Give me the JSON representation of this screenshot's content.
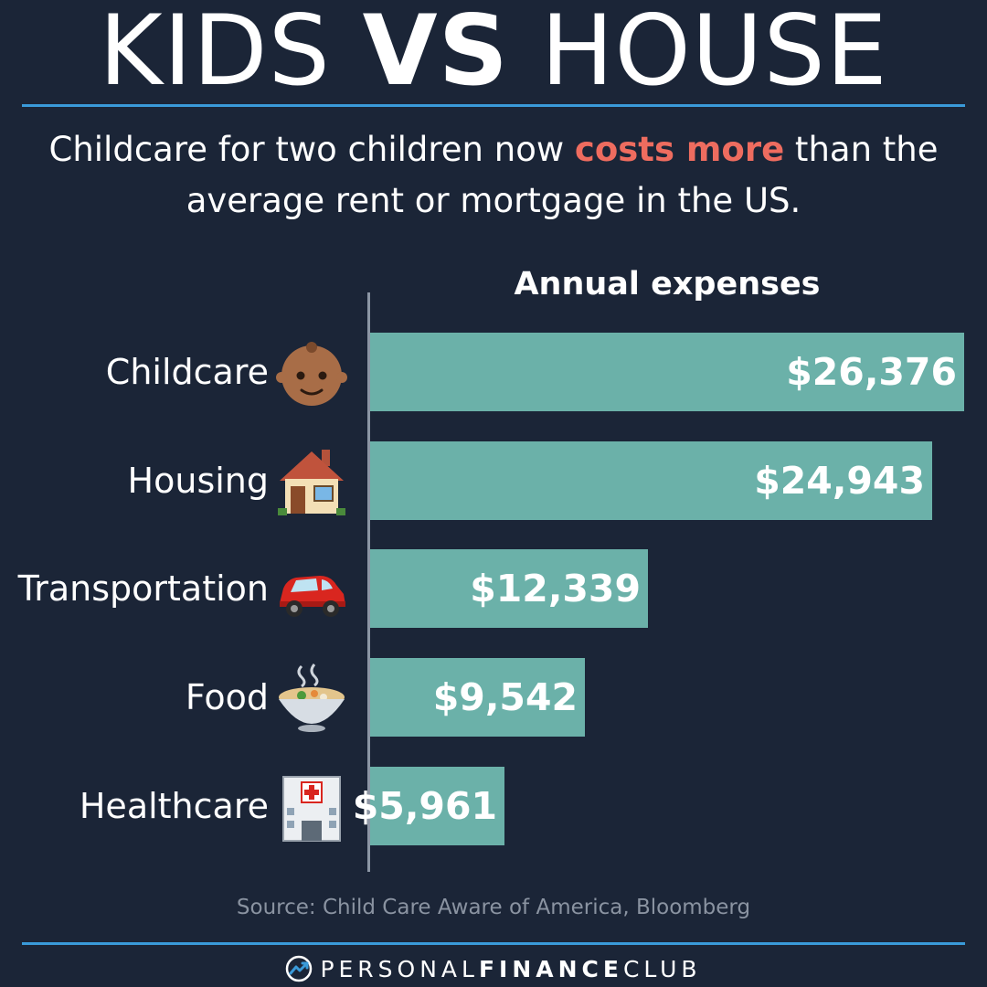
{
  "header": {
    "title_part1": "KIDS ",
    "title_part2": "VS",
    "title_part3": " HOUSE",
    "subtitle_before": "Childcare for two children now ",
    "subtitle_highlight": "costs more",
    "subtitle_after": " than the average rent or mortgage in the US."
  },
  "chart_data": {
    "type": "bar",
    "orientation": "horizontal",
    "title": "Annual expenses",
    "categories": [
      "Childcare",
      "Housing",
      "Transportation",
      "Food",
      "Healthcare"
    ],
    "values": [
      26376,
      24943,
      12339,
      9542,
      5961
    ],
    "value_labels": [
      "$26,376",
      "$24,943",
      "$12,339",
      "$9,542",
      "$5,961"
    ],
    "icons": [
      "baby-icon",
      "house-icon",
      "car-icon",
      "stew-bowl-icon",
      "hospital-icon"
    ],
    "xlim": [
      0,
      26376
    ],
    "grid": false,
    "bar_color": "#6bb1a9"
  },
  "footer": {
    "source": "Source: Child Care Aware of America, Bloomberg",
    "brand_part1": "PERSONAL",
    "brand_part2": "FINANCE",
    "brand_part3": "CLUB"
  },
  "colors": {
    "background": "#1b2537",
    "accent_rule": "#3a9ad9",
    "highlight": "#ee6c5f",
    "bar": "#6bb1a9",
    "source_text": "#8a93a1"
  }
}
